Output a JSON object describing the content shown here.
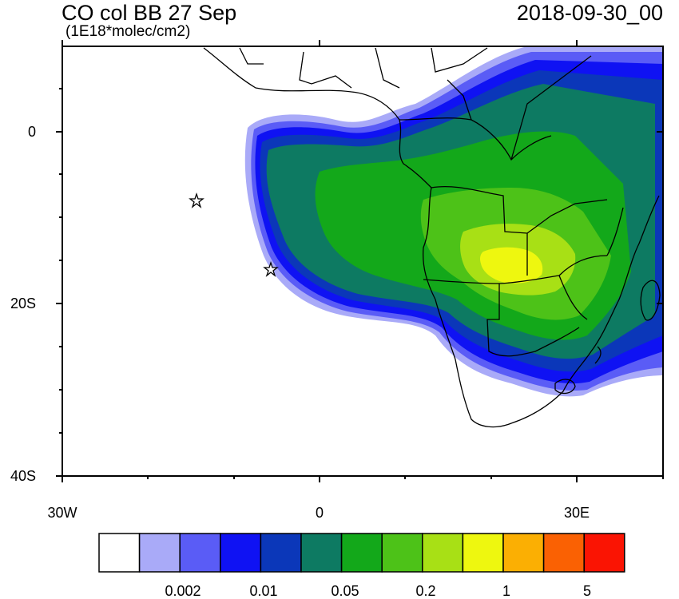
{
  "header": {
    "title": "CO col BB 27 Sep",
    "units": "(1E18*molec/cm2)",
    "date": "2018-09-30_00"
  },
  "axes": {
    "y_ticks": [
      "0",
      "20S",
      "40S"
    ],
    "x_ticks": [
      "30W",
      "0",
      "30E"
    ]
  },
  "colorbar": {
    "colors": [
      "#ffffff",
      "#a9aaf8",
      "#5a5cf6",
      "#0f12f3",
      "#0b37b9",
      "#0d7a62",
      "#13a81a",
      "#4dc218",
      "#a8e015",
      "#eef70f",
      "#fbaf03",
      "#fa6103",
      "#fa1403"
    ],
    "labels": [
      "0.002",
      "0.01",
      "0.05",
      "0.2",
      "1",
      "5"
    ]
  },
  "map_colors": {
    "land_line": "#000000",
    "palest": "#a9aaf8",
    "pale": "#5a5cf6",
    "blue": "#0f12f3",
    "navy": "#0b37b9",
    "teal": "#0d7a62",
    "green": "#13a81a",
    "lightgreen": "#4dc218",
    "lime": "#a8e015",
    "yellow": "#eef70f"
  },
  "markers": [
    {
      "name": "star-marker-1",
      "symbol": "star"
    },
    {
      "name": "star-marker-2",
      "symbol": "star"
    }
  ]
}
